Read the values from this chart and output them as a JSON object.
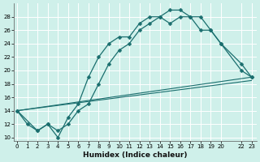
{
  "xlabel": "Humidex (Indice chaleur)",
  "bg_color": "#cff0ea",
  "grid_color": "#ffffff",
  "line_color": "#1a6e6e",
  "series": [
    {
      "x": [
        0,
        1,
        2,
        3,
        4,
        5,
        6,
        7,
        8,
        9,
        10,
        11,
        12,
        13,
        14,
        15,
        16,
        17,
        18,
        19,
        20,
        22,
        23
      ],
      "y": [
        14,
        12,
        11,
        12,
        10,
        13,
        15,
        19,
        22,
        24,
        25,
        25,
        27,
        28,
        28,
        29,
        29,
        28,
        28,
        26,
        24,
        21,
        19
      ],
      "linestyle": "-",
      "marker": "D",
      "markersize": 2.5,
      "linewidth": 0.9
    },
    {
      "x": [
        0,
        2,
        3,
        4,
        5,
        6,
        7,
        8,
        9,
        10,
        11,
        12,
        13,
        14,
        15,
        16,
        17,
        18,
        19,
        20,
        22,
        23
      ],
      "y": [
        14,
        11,
        12,
        11,
        12,
        14,
        15,
        18,
        21,
        23,
        24,
        26,
        27,
        28,
        27,
        28,
        28,
        26,
        26,
        24,
        20,
        19
      ],
      "linestyle": "-",
      "marker": "D",
      "markersize": 2.5,
      "linewidth": 0.9
    },
    {
      "x": [
        0,
        23
      ],
      "y": [
        14,
        19
      ],
      "linestyle": "-",
      "marker": null,
      "markersize": 0,
      "linewidth": 0.8
    },
    {
      "x": [
        0,
        23
      ],
      "y": [
        14,
        18.5
      ],
      "linestyle": "-",
      "marker": null,
      "markersize": 0,
      "linewidth": 0.8
    }
  ],
  "xlim": [
    -0.3,
    23.5
  ],
  "ylim": [
    9.5,
    30
  ],
  "yticks": [
    10,
    12,
    14,
    16,
    18,
    20,
    22,
    24,
    26,
    28
  ],
  "xticks": [
    0,
    1,
    2,
    3,
    4,
    5,
    6,
    7,
    8,
    9,
    10,
    11,
    12,
    13,
    14,
    15,
    16,
    17,
    18,
    19,
    20,
    22,
    23
  ],
  "xlabel_fontsize": 6.5,
  "tick_fontsize": 5.0
}
